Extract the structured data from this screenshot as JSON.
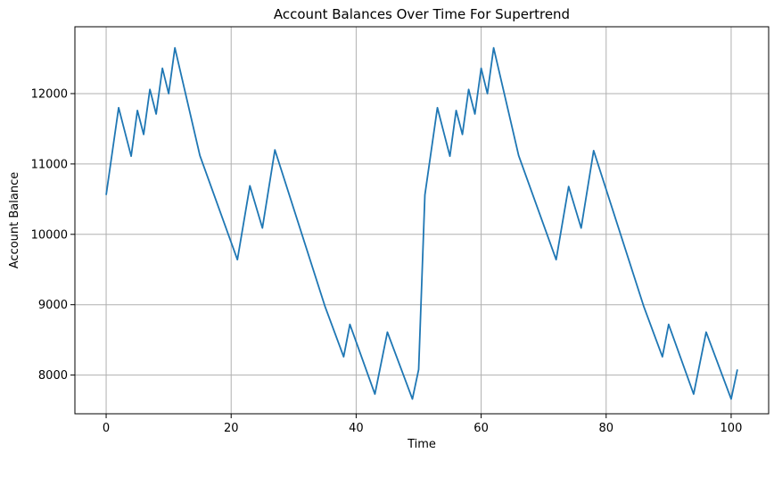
{
  "chart_data": {
    "type": "line",
    "title": "Account Balances Over Time For Supertrend",
    "xlabel": "Time",
    "ylabel": "Account Balance",
    "xlim": [
      -5,
      106
    ],
    "ylim": [
      7450,
      12950
    ],
    "xticks": [
      0,
      20,
      40,
      60,
      80,
      100
    ],
    "yticks": [
      8000,
      9000,
      10000,
      11000,
      12000
    ],
    "grid": true,
    "line_color": "#1f77b4",
    "series": [
      {
        "x": [
          0,
          2,
          4,
          5,
          6,
          7,
          8,
          9,
          10,
          11,
          15,
          21,
          23,
          25,
          27,
          35,
          38,
          39,
          43,
          45,
          49,
          50,
          51,
          53,
          55,
          56,
          57,
          58,
          59,
          60,
          61,
          62,
          66,
          72,
          74,
          76,
          78,
          86,
          89,
          90,
          94,
          96,
          100,
          101
        ],
        "y": [
          10560,
          11800,
          11110,
          11760,
          11420,
          12060,
          11710,
          12360,
          12000,
          12650,
          11120,
          9640,
          10690,
          10090,
          11200,
          8980,
          8260,
          8720,
          7730,
          8610,
          7660,
          8080,
          10560,
          11800,
          11110,
          11760,
          11420,
          12060,
          11710,
          12360,
          12000,
          12650,
          11120,
          9640,
          10680,
          10090,
          11190,
          8980,
          8260,
          8720,
          7730,
          8610,
          7660,
          8080
        ]
      }
    ]
  }
}
